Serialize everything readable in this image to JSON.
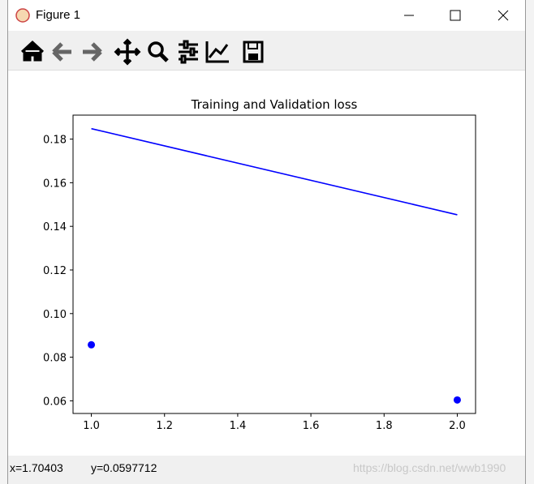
{
  "window": {
    "title": "Figure 1"
  },
  "chart_data": {
    "type": "line",
    "title": "Training and Validation loss",
    "x": [
      1,
      2
    ],
    "series": [
      {
        "style": "markers",
        "color": "#0000ff",
        "values": [
          0.0857,
          0.0604
        ]
      },
      {
        "style": "line",
        "color": "#0000ff",
        "values": [
          0.1848,
          0.1453
        ]
      }
    ],
    "xlim": [
      0.95,
      2.05
    ],
    "xticks": [
      {
        "value": 1,
        "label": "1.0"
      },
      1.2,
      1.4,
      1.6,
      1.8,
      {
        "value": 2,
        "label": "2.0"
      }
    ],
    "ylim": [
      0.0542,
      0.191
    ],
    "yticks": [
      0.06,
      0.08,
      {
        "value": 0.1,
        "label": "0.10"
      },
      0.12,
      0.14,
      0.16,
      0.18
    ],
    "grid": false
  },
  "status": {
    "x": "x=1.70403",
    "y": "y=0.0597712"
  },
  "watermark": "https://blog.csdn.net/wwb1990"
}
